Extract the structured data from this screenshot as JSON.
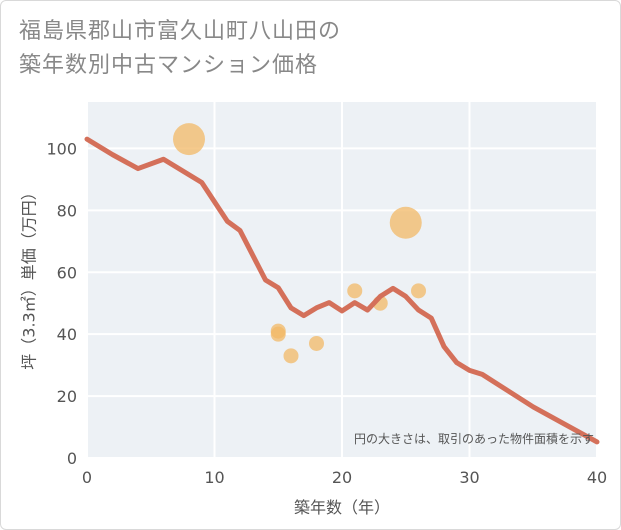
{
  "chart_data": {
    "type": "line+scatter",
    "title_lines": [
      "福島県郡山市富久山町八山田の",
      "築年数別中古マンション価格"
    ],
    "xlabel": "築年数（年）",
    "ylabel": "坪（3.3㎡）単価（万円）",
    "xlim": [
      0,
      40
    ],
    "ylim": [
      0,
      115
    ],
    "xticks": [
      0,
      10,
      20,
      30,
      40
    ],
    "yticks": [
      0,
      20,
      40,
      60,
      80,
      100
    ],
    "note": "円の大きさは、取引のあった物件面積を示す",
    "line_color": "#d4705a",
    "bubble_color": "#f2b866",
    "line": {
      "x": [
        0,
        2,
        4,
        6,
        8,
        9,
        11,
        12,
        14,
        15,
        16,
        17,
        18,
        19,
        20,
        21,
        22,
        23,
        24,
        25,
        26,
        27,
        28,
        29,
        30,
        31,
        35,
        40
      ],
      "y": [
        103,
        98,
        93.5,
        96.5,
        91.5,
        89,
        76.5,
        73.5,
        57.5,
        55,
        48.5,
        46,
        48.5,
        50.2,
        47.5,
        50.2,
        47.8,
        52.2,
        54.8,
        52.2,
        47.8,
        45.2,
        36,
        30.8,
        28.3,
        27,
        16.5,
        5.2
      ]
    },
    "bubbles": [
      {
        "x": 8,
        "y": 103,
        "size": 3
      },
      {
        "x": 15,
        "y": 41,
        "size": 1
      },
      {
        "x": 15,
        "y": 40,
        "size": 1
      },
      {
        "x": 16,
        "y": 33,
        "size": 1
      },
      {
        "x": 18,
        "y": 37,
        "size": 1
      },
      {
        "x": 21,
        "y": 54,
        "size": 1
      },
      {
        "x": 23,
        "y": 50,
        "size": 1
      },
      {
        "x": 25,
        "y": 76,
        "size": 3
      },
      {
        "x": 26,
        "y": 54,
        "size": 1
      }
    ]
  }
}
